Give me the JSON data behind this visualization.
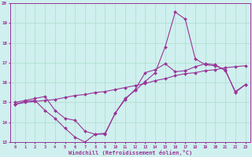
{
  "xlabel": "Windchill (Refroidissement éolien,°C)",
  "background_color": "#cff0ee",
  "grid_color": "#aaddcc",
  "line_color": "#993399",
  "xlim": [
    -0.5,
    23.5
  ],
  "ylim": [
    13,
    20
  ],
  "yticks": [
    13,
    14,
    15,
    16,
    17,
    18,
    19,
    20
  ],
  "xticks": [
    0,
    1,
    2,
    3,
    4,
    5,
    6,
    7,
    8,
    9,
    10,
    11,
    12,
    13,
    14,
    15,
    16,
    17,
    18,
    19,
    20,
    21,
    22,
    23
  ],
  "series1_x": [
    0,
    1,
    2,
    3,
    4,
    5,
    6,
    7,
    8,
    9,
    10,
    11,
    12,
    13,
    14,
    15,
    16,
    17,
    18,
    19,
    20,
    21,
    22,
    23
  ],
  "series1_y": [
    15.0,
    15.1,
    15.2,
    15.3,
    14.6,
    14.2,
    14.1,
    13.55,
    13.4,
    13.4,
    14.45,
    15.15,
    15.65,
    16.5,
    16.65,
    16.95,
    16.55,
    16.6,
    16.8,
    16.95,
    16.9,
    16.6,
    15.55,
    15.9
  ],
  "series2_x": [
    0,
    1,
    2,
    3,
    4,
    5,
    6,
    7,
    8,
    9,
    10,
    11,
    12,
    13,
    14,
    15,
    16,
    17,
    18,
    19,
    20,
    21,
    22,
    23
  ],
  "series2_y": [
    14.9,
    15.05,
    15.1,
    14.6,
    14.2,
    13.7,
    13.25,
    13.0,
    13.4,
    13.45,
    14.45,
    15.2,
    15.6,
    16.05,
    16.5,
    17.8,
    19.55,
    19.2,
    17.2,
    16.9,
    16.85,
    16.65,
    15.5,
    15.9
  ],
  "series3_x": [
    0,
    1,
    2,
    3,
    4,
    5,
    6,
    7,
    8,
    9,
    10,
    11,
    12,
    13,
    14,
    15,
    16,
    17,
    18,
    19,
    20,
    21,
    22,
    23
  ],
  "series3_y": [
    14.9,
    15.0,
    15.05,
    15.1,
    15.15,
    15.25,
    15.35,
    15.4,
    15.5,
    15.55,
    15.65,
    15.75,
    15.85,
    15.95,
    16.1,
    16.2,
    16.35,
    16.45,
    16.5,
    16.6,
    16.65,
    16.75,
    16.8,
    16.85
  ]
}
